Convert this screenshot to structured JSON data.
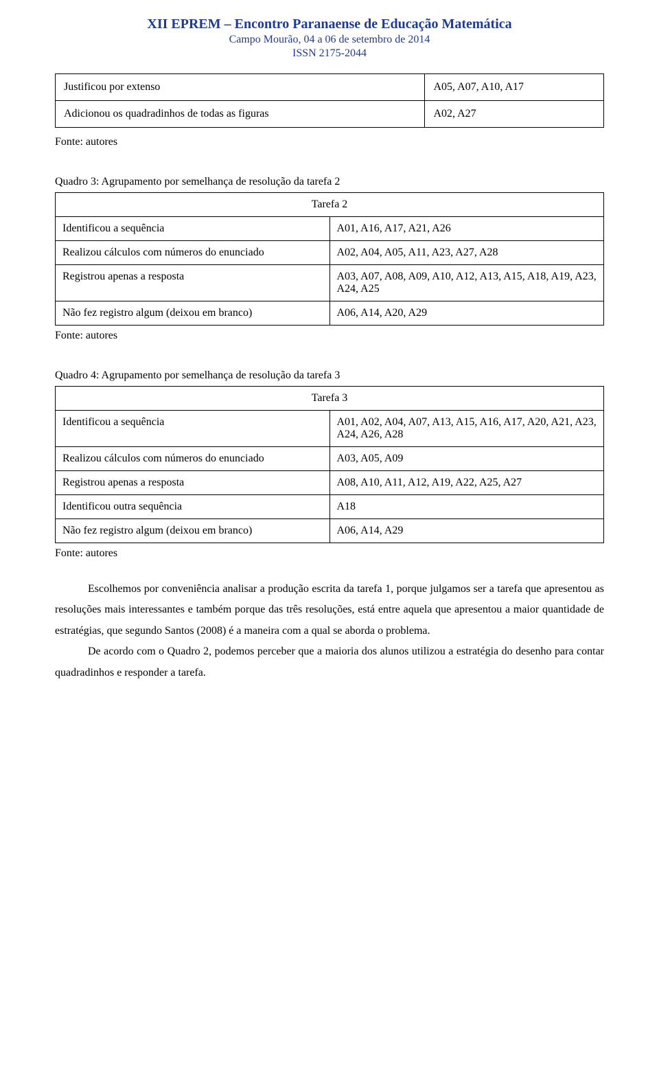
{
  "header": {
    "title": "XII EPREM – Encontro Paranaense de Educação Matemática",
    "place_date": "Campo Mourão, 04 a 06 de setembro de 2014",
    "issn": "ISSN 2175-2044"
  },
  "top_table": {
    "rows": [
      {
        "left": "Justificou por extenso",
        "right": "A05, A07, A10, A17"
      },
      {
        "left": "Adicionou os quadradinhos de todas as figuras",
        "right": "A02, A27"
      }
    ]
  },
  "source_label": "Fonte: autores",
  "quadro3": {
    "caption": "Quadro 3: Agrupamento por semelhança de resolução da tarefa 2",
    "header": "Tarefa 2",
    "rows": [
      {
        "left": "Identificou a sequência",
        "right": "A01, A16, A17, A21, A26"
      },
      {
        "left": "Realizou cálculos com números do enunciado",
        "right": "A02, A04, A05, A11, A23, A27, A28"
      },
      {
        "left": "Registrou apenas a resposta",
        "right": "A03, A07, A08, A09, A10, A12, A13, A15, A18, A19, A23, A24, A25"
      },
      {
        "left": "Não fez registro algum (deixou em branco)",
        "right": "A06, A14, A20, A29"
      }
    ]
  },
  "quadro4": {
    "caption": "Quadro 4: Agrupamento por semelhança de resolução da tarefa 3",
    "header": "Tarefa 3",
    "rows": [
      {
        "left": "Identificou a sequência",
        "right": "A01, A02, A04, A07, A13, A15, A16, A17, A20, A21, A23, A24, A26, A28"
      },
      {
        "left": "Realizou cálculos com números do enunciado",
        "right": "A03, A05, A09"
      },
      {
        "left": "Registrou apenas a resposta",
        "right": "A08, A10, A11, A12, A19, A22, A25, A27"
      },
      {
        "left": "Identificou outra sequência",
        "right": "A18"
      },
      {
        "left": "Não fez registro algum (deixou em branco)",
        "right": "A06, A14, A29"
      }
    ]
  },
  "body": {
    "p1": "Escolhemos por conveniência analisar a produção escrita da tarefa 1, porque julgamos ser a tarefa que apresentou as resoluções mais interessantes e também porque das três resoluções, está entre aquela que apresentou a maior quantidade de estratégias, que segundo Santos (2008) é a maneira com a qual se aborda o problema.",
    "p2": "De acordo com o Quadro 2, podemos perceber que a maioria dos alunos utilizou a estratégia do desenho para contar quadradinhos e responder a tarefa."
  },
  "colors": {
    "header_text": "#1f3a93",
    "body_text": "#000000",
    "border": "#000000",
    "background": "#ffffff"
  },
  "typography": {
    "header_font": "Comic Sans MS",
    "body_font": "Times New Roman",
    "header_title_size_pt": 15,
    "header_sub_size_pt": 12,
    "body_size_pt": 12,
    "line_height": 1.9
  }
}
